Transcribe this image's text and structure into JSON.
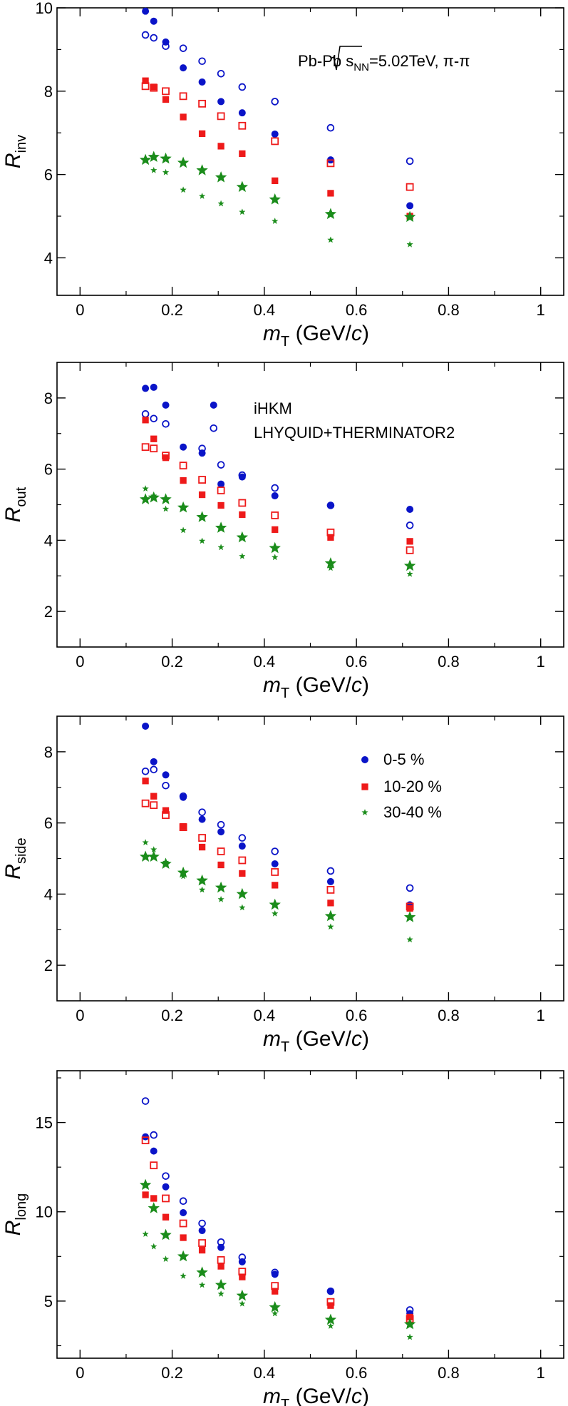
{
  "title": "Pb-Pb √sNN=5.02TeV, π-π",
  "colors": {
    "0-5": "#0a14c8",
    "10-20": "#ee1a1a",
    "30-40": "#1a8c1a"
  },
  "centralities": [
    "0-5 %",
    "10-20 %",
    "30-40 %"
  ],
  "models": [
    "iHKM",
    "LHYQUID+THERMINATOR2"
  ],
  "chart_data": [
    {
      "type": "scatter",
      "panel": "Rinv",
      "ylabel_main": "R",
      "ylabel_sub": "inv",
      "xlabel_main": "m",
      "xlabel_sub": "T",
      "xlabel_unit": " (GeV/",
      "xlabel_unit_italic": "c",
      "xlabel_close": ")",
      "xlim": [
        -0.05,
        1.05
      ],
      "ylim": [
        3.1,
        10.0
      ],
      "xticks": [
        0,
        0.2,
        0.4,
        0.6,
        0.8,
        1
      ],
      "xtick_labels": [
        "0",
        "0.2",
        "0.4",
        "0.6",
        "0.8",
        "1"
      ],
      "yticks": [
        4,
        6,
        8,
        10
      ],
      "ytick_labels": [
        "4",
        "6",
        "8",
        "10"
      ],
      "title_parts": {
        "system": "Pb-Pb ",
        "sqrt_s": "s",
        "sqrt_sub": "NN",
        "energy": "=5.02TeV, π-π"
      },
      "series": [
        {
          "name": "0-5 % iHKM",
          "marker": "circle",
          "filled": true,
          "color": "0-5",
          "x": [
            0.142,
            0.16,
            0.186,
            0.224,
            0.265,
            0.306,
            0.352,
            0.423,
            0.544,
            0.716
          ],
          "y": [
            9.92,
            9.68,
            9.18,
            8.56,
            8.22,
            7.75,
            7.48,
            6.97,
            6.35,
            5.25
          ]
        },
        {
          "name": "0-5 % LHYQUID+THERMINATOR2",
          "marker": "circle",
          "filled": false,
          "color": "0-5",
          "x": [
            0.142,
            0.16,
            0.186,
            0.224,
            0.265,
            0.306,
            0.352,
            0.423,
            0.544,
            0.716
          ],
          "y": [
            9.35,
            9.28,
            9.08,
            9.03,
            8.72,
            8.42,
            8.1,
            7.75,
            7.12,
            6.32
          ]
        },
        {
          "name": "10-20 % iHKM",
          "marker": "square",
          "filled": true,
          "color": "10-20",
          "x": [
            0.142,
            0.16,
            0.186,
            0.224,
            0.265,
            0.306,
            0.352,
            0.423,
            0.544,
            0.716
          ],
          "y": [
            8.25,
            8.1,
            7.8,
            7.38,
            6.98,
            6.68,
            6.5,
            5.85,
            5.55,
            5.0
          ]
        },
        {
          "name": "10-20 % LHYQUID+THERMINATOR2",
          "marker": "square",
          "filled": false,
          "color": "10-20",
          "x": [
            0.142,
            0.16,
            0.186,
            0.224,
            0.265,
            0.306,
            0.352,
            0.423,
            0.544,
            0.716
          ],
          "y": [
            8.12,
            8.08,
            8.0,
            7.88,
            7.7,
            7.4,
            7.17,
            6.8,
            6.27,
            5.7
          ]
        },
        {
          "name": "30-40 % iHKM",
          "marker": "star-small",
          "filled": true,
          "color": "30-40",
          "x": [
            0.142,
            0.16,
            0.186,
            0.224,
            0.265,
            0.306,
            0.352,
            0.423,
            0.544,
            0.716
          ],
          "y": [
            6.35,
            6.1,
            6.05,
            5.63,
            5.48,
            5.3,
            5.1,
            4.88,
            4.43,
            4.32
          ]
        },
        {
          "name": "30-40 % LHYQUID+THERMINATOR2",
          "marker": "star-large",
          "filled": true,
          "color": "30-40",
          "x": [
            0.142,
            0.16,
            0.186,
            0.224,
            0.265,
            0.306,
            0.352,
            0.423,
            0.544,
            0.716
          ],
          "y": [
            6.35,
            6.42,
            6.38,
            6.28,
            6.1,
            5.93,
            5.7,
            5.4,
            5.05,
            4.98
          ]
        }
      ]
    },
    {
      "type": "scatter",
      "panel": "Rout",
      "ylabel_main": "R",
      "ylabel_sub": "out",
      "xlabel_main": "m",
      "xlabel_sub": "T",
      "xlabel_unit": " (GeV/",
      "xlabel_unit_italic": "c",
      "xlabel_close": ")",
      "xlim": [
        -0.05,
        1.05
      ],
      "ylim": [
        1.0,
        9.0
      ],
      "xticks": [
        0,
        0.2,
        0.4,
        0.6,
        0.8,
        1
      ],
      "xtick_labels": [
        "0",
        "0.2",
        "0.4",
        "0.6",
        "0.8",
        "1"
      ],
      "yticks": [
        2,
        4,
        6,
        8
      ],
      "ytick_labels": [
        "2",
        "4",
        "6",
        "8"
      ],
      "annotations": [
        "iHKM",
        "LHYQUID+THERMINATOR2"
      ],
      "series": [
        {
          "name": "0-5 % iHKM",
          "marker": "circle",
          "filled": true,
          "color": "0-5",
          "x": [
            0.142,
            0.16,
            0.186,
            0.224,
            0.265,
            0.29,
            0.306,
            0.352,
            0.423,
            0.544,
            0.716
          ],
          "y": [
            8.27,
            8.3,
            7.8,
            6.62,
            6.45,
            7.8,
            5.58,
            5.78,
            5.25,
            4.98,
            4.87
          ]
        },
        {
          "name": "0-5 % LHYQUID+THERMINATOR2",
          "marker": "circle",
          "filled": false,
          "color": "0-5",
          "x": [
            0.142,
            0.16,
            0.186,
            0.265,
            0.29,
            0.306,
            0.352,
            0.423,
            0.544,
            0.716
          ],
          "y": [
            7.55,
            7.42,
            7.27,
            6.58,
            7.15,
            6.12,
            5.83,
            5.47,
            4.98,
            4.42
          ]
        },
        {
          "name": "10-20 % iHKM",
          "marker": "square",
          "filled": true,
          "color": "10-20",
          "x": [
            0.142,
            0.16,
            0.186,
            0.224,
            0.265,
            0.306,
            0.352,
            0.423,
            0.544,
            0.716
          ],
          "y": [
            7.38,
            6.85,
            6.32,
            5.68,
            5.28,
            4.98,
            4.72,
            4.3,
            4.08,
            3.97
          ]
        },
        {
          "name": "10-20 % LHYQUID+THERMINATOR2",
          "marker": "square",
          "filled": false,
          "color": "10-20",
          "x": [
            0.142,
            0.16,
            0.186,
            0.224,
            0.265,
            0.306,
            0.352,
            0.423,
            0.544,
            0.716
          ],
          "y": [
            6.62,
            6.58,
            6.38,
            6.1,
            5.7,
            5.4,
            5.05,
            4.7,
            4.22,
            3.72
          ]
        },
        {
          "name": "30-40 % iHKM",
          "marker": "star-small",
          "filled": true,
          "color": "30-40",
          "x": [
            0.142,
            0.16,
            0.186,
            0.224,
            0.265,
            0.306,
            0.352,
            0.423,
            0.544,
            0.716
          ],
          "y": [
            5.45,
            5.25,
            4.88,
            4.28,
            3.98,
            3.8,
            3.55,
            3.52,
            3.22,
            3.05
          ]
        },
        {
          "name": "30-40 % LHYQUID+THERMINATOR2",
          "marker": "star-large",
          "filled": true,
          "color": "30-40",
          "x": [
            0.142,
            0.16,
            0.186,
            0.224,
            0.265,
            0.306,
            0.352,
            0.423,
            0.544,
            0.716
          ],
          "y": [
            5.15,
            5.2,
            5.15,
            4.92,
            4.65,
            4.35,
            4.08,
            3.78,
            3.35,
            3.28
          ]
        }
      ]
    },
    {
      "type": "scatter",
      "panel": "Rside",
      "ylabel_main": "R",
      "ylabel_sub": "side",
      "xlabel_main": "m",
      "xlabel_sub": "T",
      "xlabel_unit": " (GeV/",
      "xlabel_unit_italic": "c",
      "xlabel_close": ")",
      "xlim": [
        -0.05,
        1.05
      ],
      "ylim": [
        1.0,
        9.0
      ],
      "xticks": [
        0,
        0.2,
        0.4,
        0.6,
        0.8,
        1
      ],
      "xtick_labels": [
        "0",
        "0.2",
        "0.4",
        "0.6",
        "0.8",
        "1"
      ],
      "yticks": [
        2,
        4,
        6,
        8
      ],
      "ytick_labels": [
        "2",
        "4",
        "6",
        "8"
      ],
      "legend": [
        "0-5 %",
        "10-20 %",
        "30-40 %"
      ],
      "series": [
        {
          "name": "0-5 % iHKM",
          "marker": "circle",
          "filled": true,
          "color": "0-5",
          "x": [
            0.142,
            0.16,
            0.186,
            0.224,
            0.265,
            0.306,
            0.352,
            0.423,
            0.544,
            0.716
          ],
          "y": [
            8.72,
            7.72,
            7.35,
            6.72,
            6.1,
            5.75,
            5.35,
            4.85,
            4.35,
            3.7
          ]
        },
        {
          "name": "0-5 % LHYQUID+THERMINATOR2",
          "marker": "circle",
          "filled": false,
          "color": "0-5",
          "x": [
            0.142,
            0.16,
            0.186,
            0.224,
            0.265,
            0.306,
            0.352,
            0.423,
            0.544,
            0.716
          ],
          "y": [
            7.45,
            7.5,
            7.05,
            6.75,
            6.3,
            5.95,
            5.58,
            5.2,
            4.65,
            4.17
          ]
        },
        {
          "name": "10-20 % iHKM",
          "marker": "square",
          "filled": true,
          "color": "10-20",
          "x": [
            0.142,
            0.16,
            0.186,
            0.224,
            0.265,
            0.306,
            0.352,
            0.423,
            0.544,
            0.716
          ],
          "y": [
            7.18,
            6.75,
            6.35,
            5.9,
            5.32,
            4.82,
            4.58,
            4.25,
            3.75,
            3.6
          ]
        },
        {
          "name": "10-20 % LHYQUID+THERMINATOR2",
          "marker": "square",
          "filled": false,
          "color": "10-20",
          "x": [
            0.142,
            0.16,
            0.186,
            0.224,
            0.265,
            0.306,
            0.352,
            0.423,
            0.544,
            0.716
          ],
          "y": [
            6.55,
            6.5,
            6.22,
            5.88,
            5.58,
            5.2,
            4.95,
            4.62,
            4.12,
            3.65
          ]
        },
        {
          "name": "30-40 % iHKM",
          "marker": "star-small",
          "filled": true,
          "color": "30-40",
          "x": [
            0.142,
            0.16,
            0.186,
            0.224,
            0.265,
            0.306,
            0.352,
            0.423,
            0.544,
            0.716
          ],
          "y": [
            5.45,
            5.25,
            4.9,
            4.5,
            4.12,
            3.85,
            3.62,
            3.45,
            3.08,
            2.72
          ]
        },
        {
          "name": "30-40 % LHYQUID+THERMINATOR2",
          "marker": "star-large",
          "filled": true,
          "color": "30-40",
          "x": [
            0.142,
            0.16,
            0.186,
            0.224,
            0.265,
            0.306,
            0.352,
            0.423,
            0.544,
            0.716
          ],
          "y": [
            5.05,
            5.05,
            4.85,
            4.6,
            4.38,
            4.18,
            4.0,
            3.7,
            3.38,
            3.35
          ]
        }
      ]
    },
    {
      "type": "scatter",
      "panel": "Rlong",
      "ylabel_main": "R",
      "ylabel_sub": "long",
      "xlabel_main": "m",
      "xlabel_sub": "T",
      "xlabel_unit": " (GeV/",
      "xlabel_unit_italic": "c",
      "xlabel_close": ")",
      "xlim": [
        -0.05,
        1.05
      ],
      "ylim": [
        1.8,
        17.9
      ],
      "xticks": [
        0,
        0.2,
        0.4,
        0.6,
        0.8,
        1
      ],
      "xtick_labels": [
        "0",
        "0.2",
        "0.4",
        "0.6",
        "0.8",
        "1"
      ],
      "yticks": [
        5,
        10,
        15
      ],
      "ytick_labels": [
        "5",
        "10",
        "15"
      ],
      "series": [
        {
          "name": "0-5 % iHKM",
          "marker": "circle",
          "filled": true,
          "color": "0-5",
          "x": [
            0.142,
            0.16,
            0.186,
            0.224,
            0.265,
            0.306,
            0.352,
            0.423,
            0.544,
            0.716
          ],
          "y": [
            14.2,
            13.4,
            11.4,
            9.95,
            8.95,
            8.0,
            7.2,
            6.5,
            5.55,
            4.3
          ]
        },
        {
          "name": "0-5 % LHYQUID+THERMINATOR2",
          "marker": "circle",
          "filled": false,
          "color": "0-5",
          "x": [
            0.142,
            0.16,
            0.186,
            0.224,
            0.265,
            0.306,
            0.352,
            0.423,
            0.544,
            0.716
          ],
          "y": [
            16.2,
            14.3,
            12.0,
            10.6,
            9.35,
            8.3,
            7.45,
            6.6,
            5.55,
            4.5
          ]
        },
        {
          "name": "10-20 % iHKM",
          "marker": "square",
          "filled": true,
          "color": "10-20",
          "x": [
            0.142,
            0.16,
            0.186,
            0.224,
            0.265,
            0.306,
            0.352,
            0.423,
            0.544,
            0.716
          ],
          "y": [
            10.95,
            10.75,
            9.7,
            8.55,
            7.85,
            6.95,
            6.35,
            5.55,
            4.75,
            4.1
          ]
        },
        {
          "name": "10-20 % LHYQUID+THERMINATOR2",
          "marker": "square",
          "filled": false,
          "color": "10-20",
          "x": [
            0.142,
            0.16,
            0.186,
            0.224,
            0.265,
            0.306,
            0.352,
            0.423,
            0.544,
            0.716
          ],
          "y": [
            14.0,
            12.6,
            10.75,
            9.35,
            8.25,
            7.3,
            6.65,
            5.85,
            4.95,
            4.0
          ]
        },
        {
          "name": "30-40 % iHKM",
          "marker": "star-small",
          "filled": true,
          "color": "30-40",
          "x": [
            0.142,
            0.16,
            0.186,
            0.224,
            0.265,
            0.306,
            0.352,
            0.423,
            0.544,
            0.716
          ],
          "y": [
            8.75,
            8.05,
            7.35,
            6.4,
            5.9,
            5.4,
            4.85,
            4.3,
            3.6,
            2.98
          ]
        },
        {
          "name": "30-40 % LHYQUID+THERMINATOR2",
          "marker": "star-large",
          "filled": true,
          "color": "30-40",
          "x": [
            0.142,
            0.16,
            0.186,
            0.224,
            0.265,
            0.306,
            0.352,
            0.423,
            0.544,
            0.716
          ],
          "y": [
            11.5,
            10.2,
            8.7,
            7.5,
            6.6,
            5.9,
            5.3,
            4.65,
            3.95,
            3.7
          ]
        }
      ]
    }
  ]
}
